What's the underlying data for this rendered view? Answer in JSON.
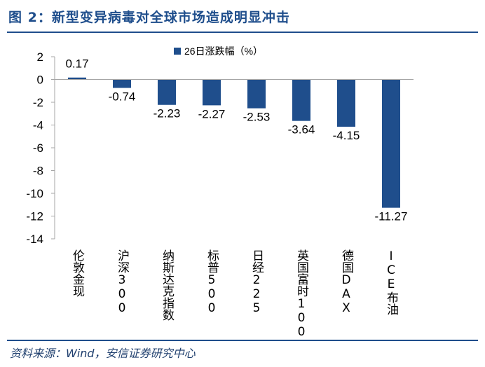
{
  "figure": {
    "title": "图 2：新型变异病毒对全球市场造成明显冲击",
    "source": "资料来源：Wind，安信证券研究中心"
  },
  "colors": {
    "bar": "#1f4e8c",
    "title": "#1f4e8c",
    "rule": "#1f4e8c",
    "axis": "#a6a6a6"
  },
  "chart_data": {
    "type": "bar",
    "categories": [
      "伦敦金现",
      "沪深300",
      "纳斯达克指数",
      "标普500",
      "日经225",
      "英国富时100",
      "德国DAX",
      "ICE布油"
    ],
    "series": [
      {
        "name": "26日涨跌幅（%）",
        "values": [
          0.17,
          -0.74,
          -2.23,
          -2.27,
          -2.53,
          -3.64,
          -4.15,
          -11.27
        ]
      }
    ],
    "data_labels": [
      "0.17",
      "-0.74",
      "-2.23",
      "-2.27",
      "-2.53",
      "-3.64",
      "-4.15",
      "-11.27"
    ],
    "yticks": [
      "2",
      "0",
      "-2",
      "-4",
      "-6",
      "-8",
      "-10",
      "-12",
      "-14"
    ],
    "ylim": [
      -14,
      2
    ],
    "grid": false,
    "legend_position": "top"
  }
}
